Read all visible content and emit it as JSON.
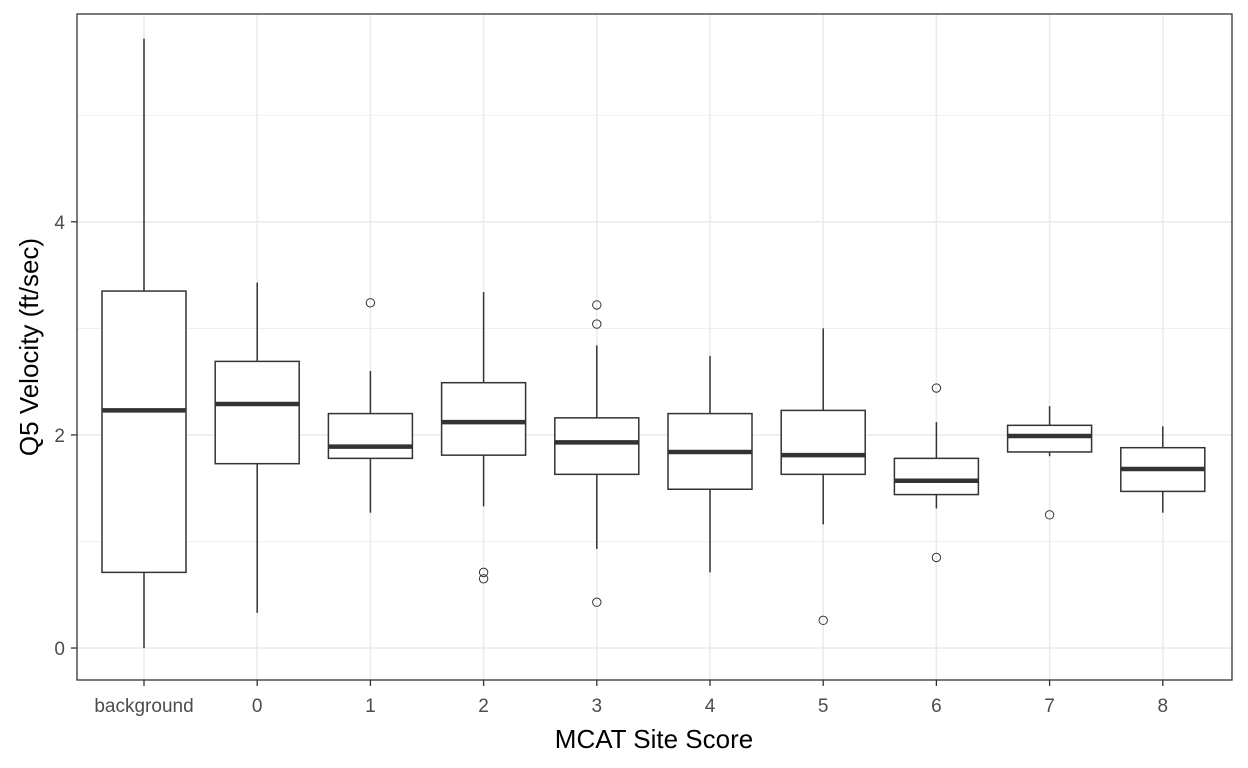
{
  "chart_data": {
    "type": "boxplot",
    "xlabel": "MCAT Site Score",
    "ylabel": "Q5 Velocity (ft/sec)",
    "ylim": [
      -0.3,
      5.95
    ],
    "y_ticks": [
      0,
      2,
      4
    ],
    "y_minor_ticks": [
      1,
      3,
      5
    ],
    "grid": true,
    "categories": [
      "background",
      "0",
      "1",
      "2",
      "3",
      "4",
      "5",
      "6",
      "7",
      "8"
    ],
    "boxes": [
      {
        "category": "background",
        "whisker_low": 0.0,
        "q1": 0.71,
        "median": 2.23,
        "q3": 3.35,
        "whisker_high": 5.72,
        "outliers": []
      },
      {
        "category": "0",
        "whisker_low": 0.33,
        "q1": 1.73,
        "median": 2.29,
        "q3": 2.69,
        "whisker_high": 3.43,
        "outliers": []
      },
      {
        "category": "1",
        "whisker_low": 1.27,
        "q1": 1.78,
        "median": 1.89,
        "q3": 2.2,
        "whisker_high": 2.6,
        "outliers": [
          3.24
        ]
      },
      {
        "category": "2",
        "whisker_low": 1.33,
        "q1": 1.81,
        "median": 2.12,
        "q3": 2.49,
        "whisker_high": 3.34,
        "outliers": [
          0.71,
          0.65
        ]
      },
      {
        "category": "3",
        "whisker_low": 0.93,
        "q1": 1.63,
        "median": 1.93,
        "q3": 2.16,
        "whisker_high": 2.84,
        "outliers": [
          3.22,
          3.04,
          0.43
        ]
      },
      {
        "category": "4",
        "whisker_low": 0.71,
        "q1": 1.49,
        "median": 1.84,
        "q3": 2.2,
        "whisker_high": 2.74,
        "outliers": []
      },
      {
        "category": "5",
        "whisker_low": 1.16,
        "q1": 1.63,
        "median": 1.81,
        "q3": 2.23,
        "whisker_high": 3.0,
        "outliers": [
          0.26
        ]
      },
      {
        "category": "6",
        "whisker_low": 1.31,
        "q1": 1.44,
        "median": 1.57,
        "q3": 1.78,
        "whisker_high": 2.12,
        "outliers": [
          2.44,
          0.85
        ]
      },
      {
        "category": "7",
        "whisker_low": 1.8,
        "q1": 1.84,
        "median": 1.99,
        "q3": 2.09,
        "whisker_high": 2.27,
        "outliers": [
          1.25
        ]
      },
      {
        "category": "8",
        "whisker_low": 1.27,
        "q1": 1.47,
        "median": 1.68,
        "q3": 1.88,
        "whisker_high": 2.08,
        "outliers": []
      }
    ],
    "colors": {
      "box_line": "#333333",
      "grid": "#ebebeb",
      "panel_border": "#333333",
      "tick_text": "#4d4d4d",
      "axis_title": "#000000"
    }
  }
}
